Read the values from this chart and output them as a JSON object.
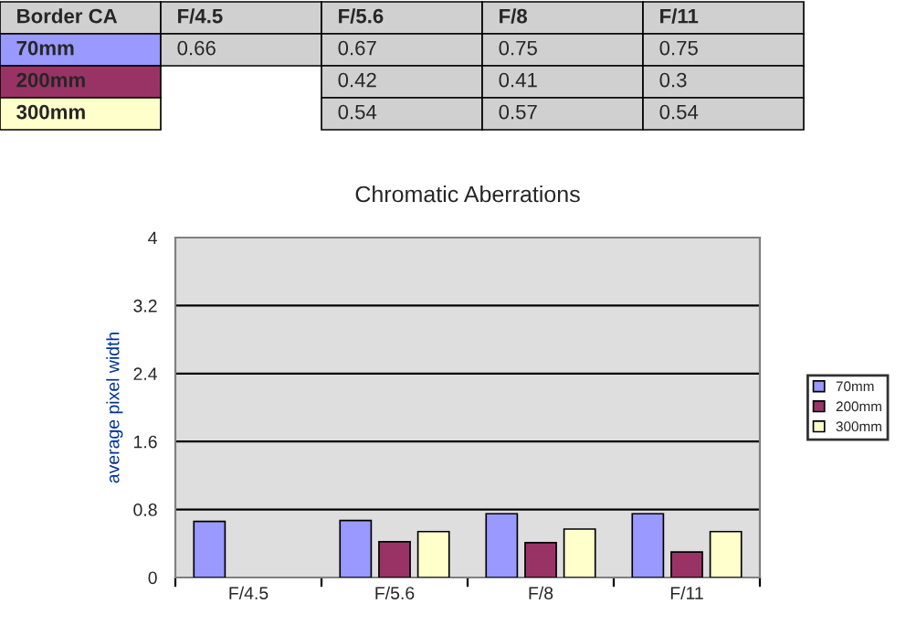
{
  "chart_data": {
    "type": "bar",
    "title": "Chromatic Aberrations",
    "ylabel": "average pixel width",
    "annotations": [
      "Border CA"
    ],
    "categories": [
      "F/4.5",
      "F/5.6",
      "F/8",
      "F/11"
    ],
    "series": [
      {
        "name": "70mm",
        "color": "#9999ff",
        "values": [
          0.66,
          0.67,
          0.75,
          0.75
        ]
      },
      {
        "name": "200mm",
        "color": "#993366",
        "values": [
          null,
          0.42,
          0.41,
          0.3
        ]
      },
      {
        "name": "300mm",
        "color": "#ffffcc",
        "values": [
          null,
          0.54,
          0.57,
          0.54
        ]
      }
    ],
    "ylim": [
      0,
      4
    ],
    "yticks": [
      0,
      0.8,
      1.6,
      2.4,
      3.2,
      4
    ],
    "grid": "y",
    "legend": "right",
    "data_labels": true
  }
}
